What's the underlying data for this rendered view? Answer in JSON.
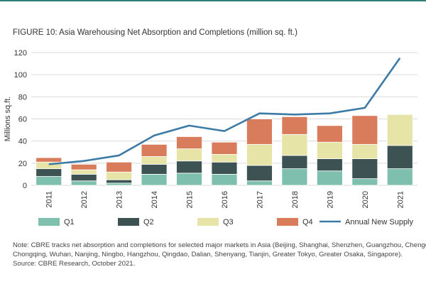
{
  "title": "FIGURE 10: Asia Warehousing Net Absorption and Completions (million sq. ft.)",
  "chart_data": {
    "type": "bar",
    "stacked": true,
    "categories": [
      "2011",
      "2012",
      "2013",
      "2014",
      "2015",
      "2016",
      "2017",
      "2018",
      "2019",
      "2020",
      "2021"
    ],
    "series": [
      {
        "name": "Q1",
        "color": "#7fbfad",
        "values": [
          8,
          4,
          2,
          10,
          11,
          10,
          4,
          15,
          13,
          6,
          15
        ]
      },
      {
        "name": "Q2",
        "color": "#3d5353",
        "values": [
          7,
          6,
          3,
          9,
          11,
          11,
          14,
          12,
          11,
          18,
          21
        ]
      },
      {
        "name": "Q3",
        "color": "#e6e4a6",
        "values": [
          6,
          4,
          7,
          7,
          11,
          7,
          19,
          19,
          15,
          13,
          28
        ]
      },
      {
        "name": "Q4",
        "color": "#d97c5b",
        "values": [
          4,
          5,
          9,
          11,
          11,
          11,
          23,
          16,
          15,
          26,
          0
        ]
      }
    ],
    "line": {
      "name": "Annual New Supply",
      "color": "#3d7ba6",
      "values": [
        19,
        22,
        27,
        45,
        54,
        49,
        65,
        64,
        65,
        70,
        115
      ]
    },
    "ylabel": "Millions sq.ft.",
    "xlabel": "",
    "ylim": [
      0,
      120
    ],
    "yticks": [
      0,
      20,
      40,
      60,
      80,
      100,
      120
    ],
    "grid": true,
    "legend_position": "bottom"
  },
  "note": {
    "line1": "Note: CBRE tracks net absorption and completions for selected major markets in Asia (Beijing, Shanghai, Shenzhen, Guangzhou, Chengdu,",
    "line2": "Chongqing, Wuhan, Nanjing, Ningbo, Hangzhou, Qingdao, Dalian, Shenyang, Tianjin, Greater Tokyo, Greater Osaka, Singapore).",
    "line3": "Source: CBRE Research, October 2021."
  }
}
